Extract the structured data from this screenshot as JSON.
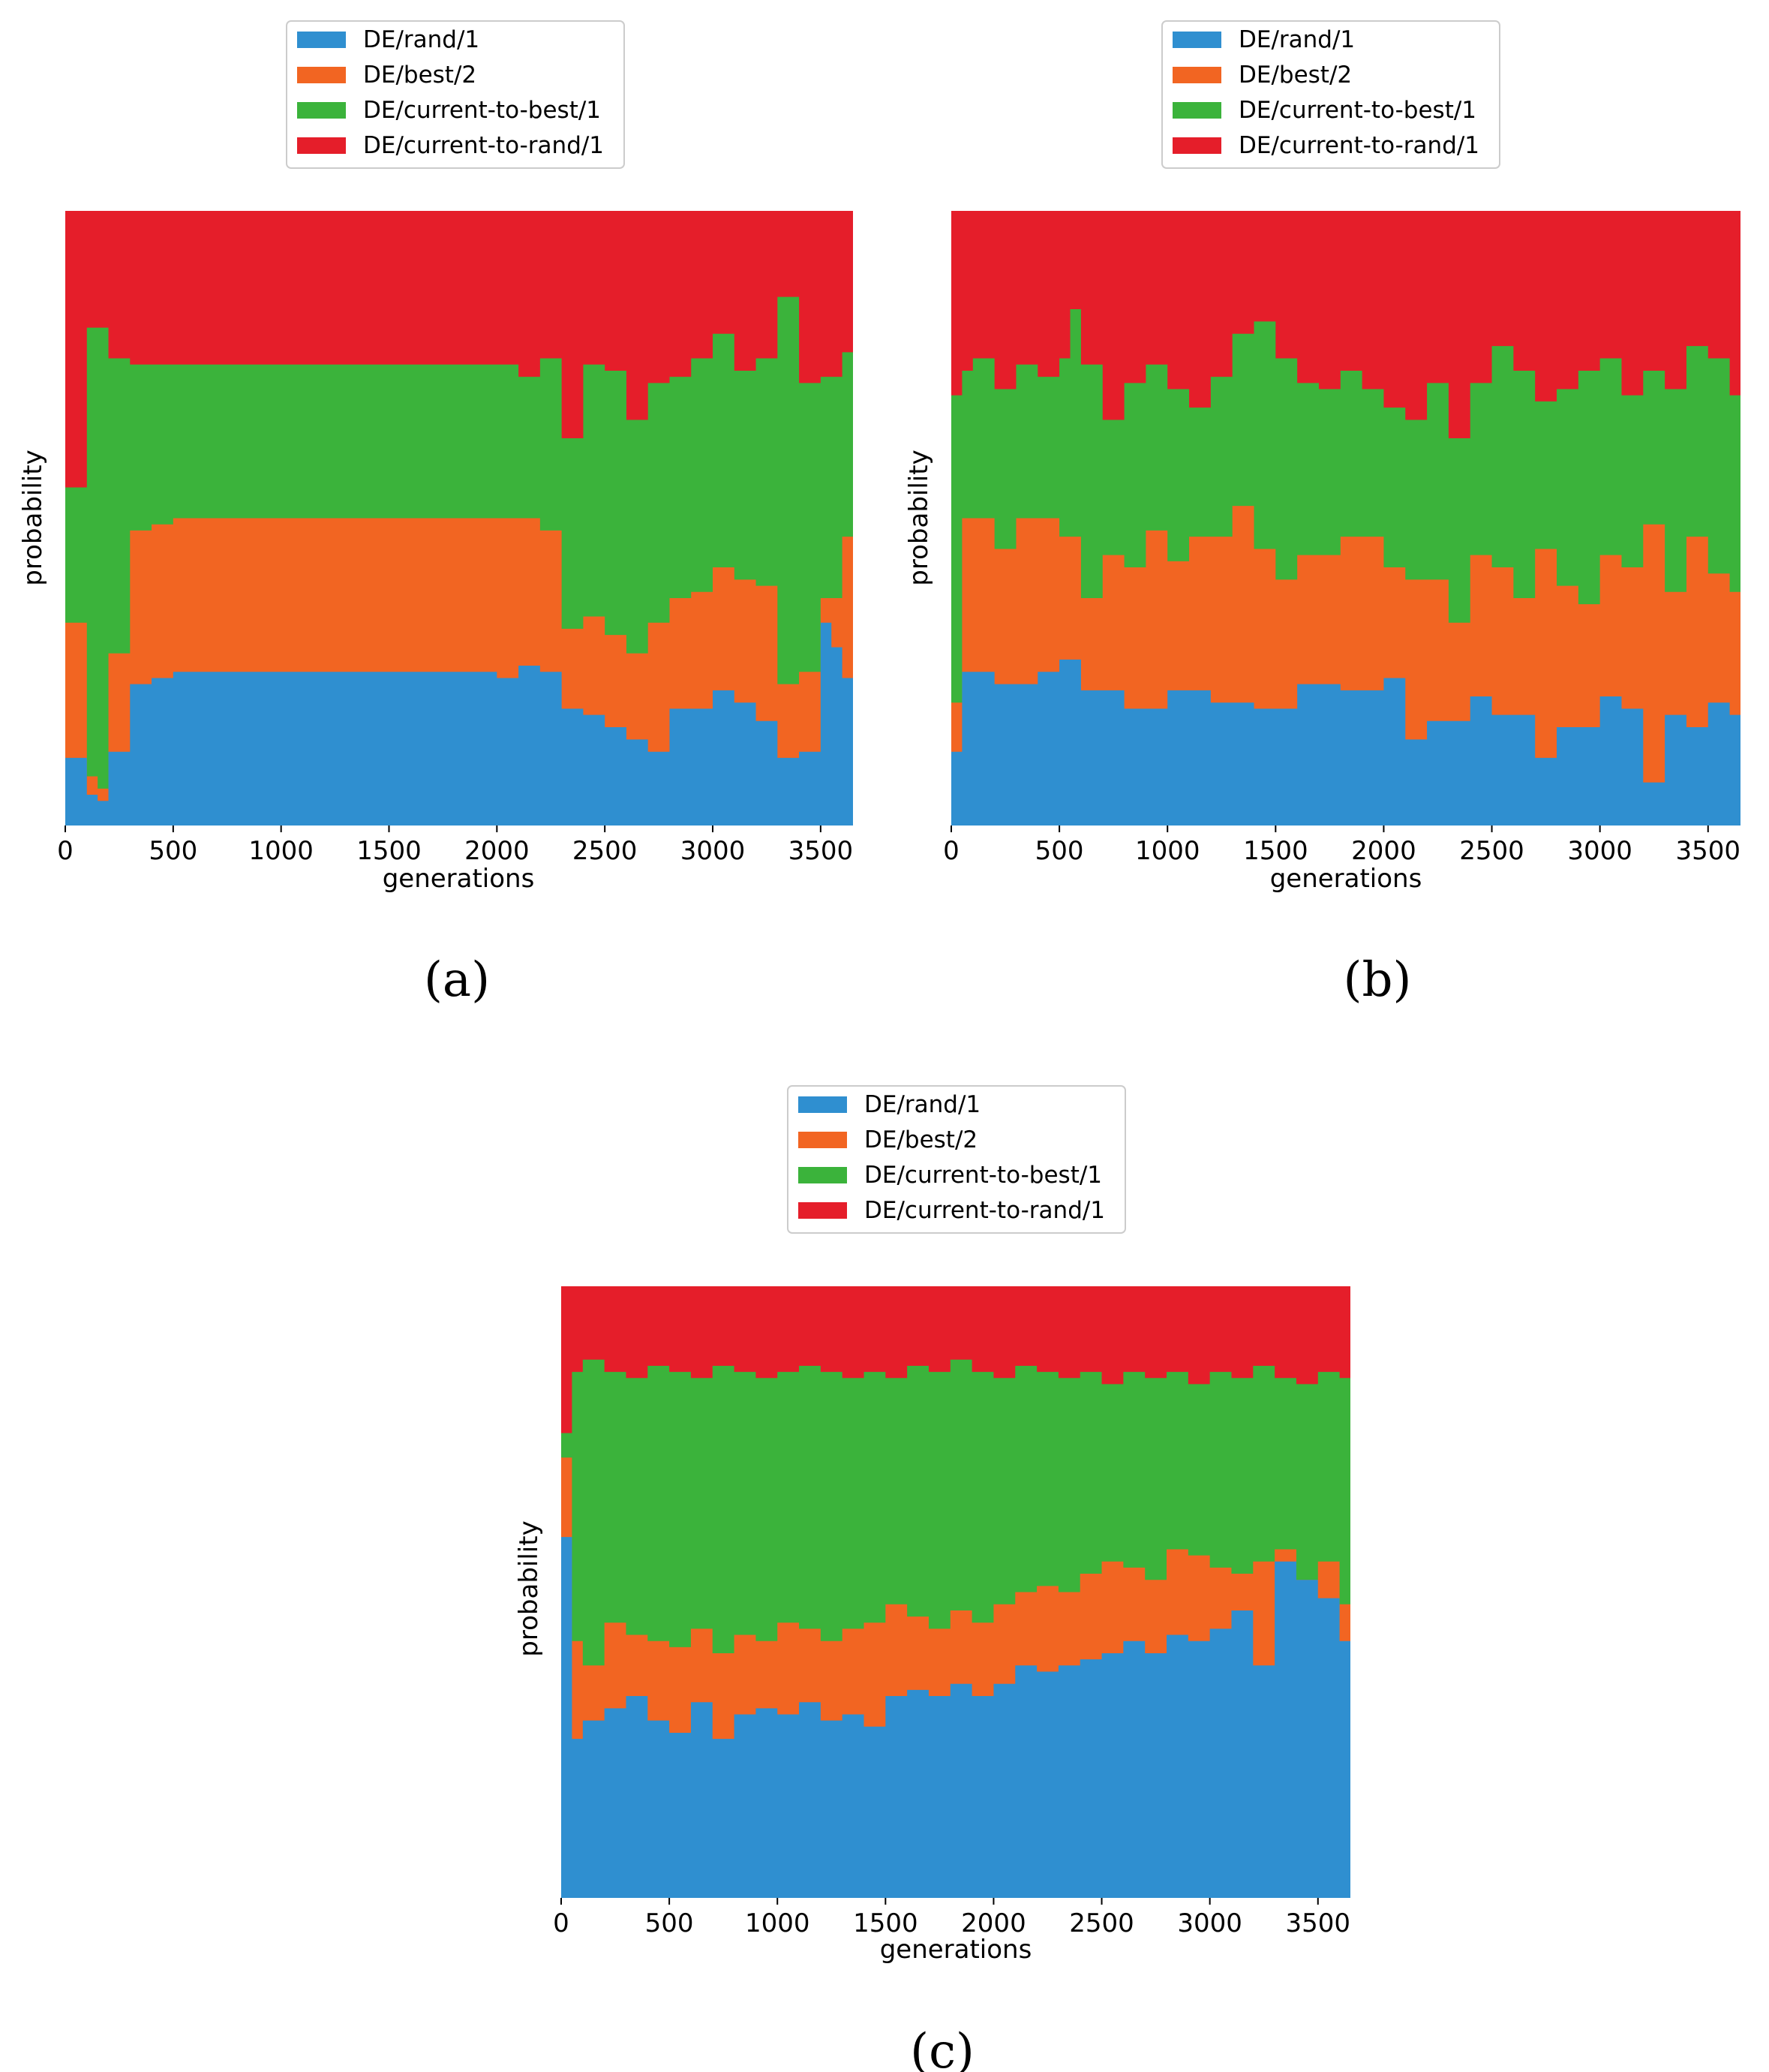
{
  "colors": {
    "DE/rand/1": "#2f8fd0",
    "DE/best/2": "#f26522",
    "DE/current-to-best/1": "#3bb33b",
    "DE/current-to-rand/1": "#e51e2a"
  },
  "chart_data": [
    {
      "panel": "(a)",
      "type": "area",
      "stacked": true,
      "step": true,
      "xlabel": "generations",
      "ylabel": "probability",
      "xlim": [
        0,
        3650
      ],
      "ylim": [
        0,
        1
      ],
      "xticks": [
        0,
        500,
        1000,
        1500,
        2000,
        2500,
        3000,
        3500
      ],
      "legend": [
        "DE/rand/1",
        "DE/best/2",
        "DE/current-to-best/1",
        "DE/current-to-rand/1"
      ],
      "legend_position": "top-center",
      "bin_width": 50,
      "cumulative_boundaries": {
        "DE/rand/1": [
          [
            0,
            0.11
          ],
          [
            100,
            0.05
          ],
          [
            150,
            0.04
          ],
          [
            200,
            0.12
          ],
          [
            300,
            0.23
          ],
          [
            400,
            0.24
          ],
          [
            500,
            0.25
          ],
          [
            2000,
            0.24
          ],
          [
            2100,
            0.26
          ],
          [
            2200,
            0.25
          ],
          [
            2300,
            0.19
          ],
          [
            2400,
            0.18
          ],
          [
            2500,
            0.16
          ],
          [
            2600,
            0.14
          ],
          [
            2700,
            0.12
          ],
          [
            2800,
            0.19
          ],
          [
            3000,
            0.22
          ],
          [
            3100,
            0.2
          ],
          [
            3200,
            0.17
          ],
          [
            3300,
            0.11
          ],
          [
            3400,
            0.12
          ],
          [
            3500,
            0.33
          ],
          [
            3550,
            0.29
          ],
          [
            3600,
            0.24
          ]
        ],
        "DE/best/2": [
          [
            0,
            0.33
          ],
          [
            100,
            0.08
          ],
          [
            150,
            0.06
          ],
          [
            200,
            0.28
          ],
          [
            300,
            0.48
          ],
          [
            400,
            0.49
          ],
          [
            500,
            0.5
          ],
          [
            2200,
            0.48
          ],
          [
            2300,
            0.32
          ],
          [
            2400,
            0.34
          ],
          [
            2500,
            0.31
          ],
          [
            2600,
            0.28
          ],
          [
            2700,
            0.33
          ],
          [
            2800,
            0.37
          ],
          [
            2900,
            0.38
          ],
          [
            3000,
            0.42
          ],
          [
            3100,
            0.4
          ],
          [
            3200,
            0.39
          ],
          [
            3300,
            0.23
          ],
          [
            3400,
            0.25
          ],
          [
            3500,
            0.37
          ],
          [
            3600,
            0.47
          ]
        ],
        "DE/current-to-best/1": [
          [
            0,
            0.55
          ],
          [
            100,
            0.81
          ],
          [
            200,
            0.76
          ],
          [
            300,
            0.75
          ],
          [
            500,
            0.75
          ],
          [
            2100,
            0.73
          ],
          [
            2200,
            0.76
          ],
          [
            2300,
            0.63
          ],
          [
            2400,
            0.75
          ],
          [
            2500,
            0.74
          ],
          [
            2600,
            0.66
          ],
          [
            2700,
            0.72
          ],
          [
            2800,
            0.73
          ],
          [
            2900,
            0.76
          ],
          [
            3000,
            0.8
          ],
          [
            3100,
            0.74
          ],
          [
            3200,
            0.76
          ],
          [
            3300,
            0.86
          ],
          [
            3400,
            0.72
          ],
          [
            3500,
            0.73
          ],
          [
            3600,
            0.77
          ]
        ]
      }
    },
    {
      "panel": "(b)",
      "type": "area",
      "stacked": true,
      "step": true,
      "xlabel": "generations",
      "ylabel": "probability",
      "xlim": [
        0,
        3650
      ],
      "ylim": [
        0,
        1
      ],
      "xticks": [
        0,
        500,
        1000,
        1500,
        2000,
        2500,
        3000,
        3500
      ],
      "legend": [
        "DE/rand/1",
        "DE/best/2",
        "DE/current-to-best/1",
        "DE/current-to-rand/1"
      ],
      "legend_position": "top-center",
      "bin_width": 50,
      "cumulative_boundaries": {
        "DE/rand/1": [
          [
            0,
            0.12
          ],
          [
            50,
            0.25
          ],
          [
            200,
            0.23
          ],
          [
            400,
            0.25
          ],
          [
            500,
            0.27
          ],
          [
            600,
            0.22
          ],
          [
            800,
            0.19
          ],
          [
            1000,
            0.22
          ],
          [
            1200,
            0.2
          ],
          [
            1400,
            0.19
          ],
          [
            1600,
            0.23
          ],
          [
            1800,
            0.22
          ],
          [
            2000,
            0.24
          ],
          [
            2100,
            0.14
          ],
          [
            2200,
            0.17
          ],
          [
            2400,
            0.21
          ],
          [
            2500,
            0.18
          ],
          [
            2700,
            0.11
          ],
          [
            2800,
            0.16
          ],
          [
            3000,
            0.21
          ],
          [
            3100,
            0.19
          ],
          [
            3200,
            0.07
          ],
          [
            3300,
            0.18
          ],
          [
            3400,
            0.16
          ],
          [
            3500,
            0.2
          ],
          [
            3600,
            0.18
          ]
        ],
        "DE/best/2": [
          [
            0,
            0.2
          ],
          [
            50,
            0.5
          ],
          [
            200,
            0.45
          ],
          [
            300,
            0.5
          ],
          [
            500,
            0.47
          ],
          [
            600,
            0.37
          ],
          [
            700,
            0.44
          ],
          [
            800,
            0.42
          ],
          [
            900,
            0.48
          ],
          [
            1000,
            0.43
          ],
          [
            1100,
            0.47
          ],
          [
            1300,
            0.52
          ],
          [
            1400,
            0.45
          ],
          [
            1500,
            0.4
          ],
          [
            1600,
            0.44
          ],
          [
            1800,
            0.47
          ],
          [
            2000,
            0.42
          ],
          [
            2100,
            0.4
          ],
          [
            2300,
            0.33
          ],
          [
            2400,
            0.44
          ],
          [
            2500,
            0.42
          ],
          [
            2600,
            0.37
          ],
          [
            2700,
            0.45
          ],
          [
            2800,
            0.39
          ],
          [
            2900,
            0.36
          ],
          [
            3000,
            0.44
          ],
          [
            3100,
            0.42
          ],
          [
            3200,
            0.49
          ],
          [
            3300,
            0.38
          ],
          [
            3400,
            0.47
          ],
          [
            3500,
            0.41
          ],
          [
            3600,
            0.38
          ]
        ],
        "DE/current-to-best/1": [
          [
            0,
            0.7
          ],
          [
            50,
            0.74
          ],
          [
            100,
            0.76
          ],
          [
            200,
            0.71
          ],
          [
            300,
            0.75
          ],
          [
            400,
            0.73
          ],
          [
            500,
            0.76
          ],
          [
            550,
            0.84
          ],
          [
            600,
            0.75
          ],
          [
            700,
            0.66
          ],
          [
            800,
            0.72
          ],
          [
            900,
            0.75
          ],
          [
            1000,
            0.71
          ],
          [
            1100,
            0.68
          ],
          [
            1200,
            0.73
          ],
          [
            1300,
            0.8
          ],
          [
            1400,
            0.82
          ],
          [
            1500,
            0.76
          ],
          [
            1600,
            0.72
          ],
          [
            1700,
            0.71
          ],
          [
            1800,
            0.74
          ],
          [
            1900,
            0.71
          ],
          [
            2000,
            0.68
          ],
          [
            2100,
            0.66
          ],
          [
            2200,
            0.72
          ],
          [
            2300,
            0.63
          ],
          [
            2400,
            0.72
          ],
          [
            2500,
            0.78
          ],
          [
            2600,
            0.74
          ],
          [
            2700,
            0.69
          ],
          [
            2800,
            0.71
          ],
          [
            2900,
            0.74
          ],
          [
            3000,
            0.76
          ],
          [
            3100,
            0.7
          ],
          [
            3200,
            0.74
          ],
          [
            3300,
            0.71
          ],
          [
            3400,
            0.78
          ],
          [
            3500,
            0.76
          ],
          [
            3600,
            0.7
          ]
        ]
      }
    },
    {
      "panel": "(c)",
      "type": "area",
      "stacked": true,
      "step": true,
      "xlabel": "generations",
      "ylabel": "probability",
      "xlim": [
        0,
        3650
      ],
      "ylim": [
        0,
        1
      ],
      "xticks": [
        0,
        500,
        1000,
        1500,
        2000,
        2500,
        3000,
        3500
      ],
      "legend": [
        "DE/rand/1",
        "DE/best/2",
        "DE/current-to-best/1",
        "DE/current-to-rand/1"
      ],
      "legend_position": "top-center",
      "bin_width": 50,
      "cumulative_boundaries": {
        "DE/rand/1": [
          [
            0,
            0.59
          ],
          [
            50,
            0.26
          ],
          [
            100,
            0.29
          ],
          [
            200,
            0.31
          ],
          [
            300,
            0.33
          ],
          [
            400,
            0.29
          ],
          [
            500,
            0.27
          ],
          [
            600,
            0.32
          ],
          [
            700,
            0.26
          ],
          [
            800,
            0.3
          ],
          [
            900,
            0.31
          ],
          [
            1000,
            0.3
          ],
          [
            1100,
            0.32
          ],
          [
            1200,
            0.29
          ],
          [
            1300,
            0.3
          ],
          [
            1400,
            0.28
          ],
          [
            1500,
            0.33
          ],
          [
            1600,
            0.34
          ],
          [
            1700,
            0.33
          ],
          [
            1800,
            0.35
          ],
          [
            1900,
            0.33
          ],
          [
            2000,
            0.35
          ],
          [
            2100,
            0.38
          ],
          [
            2200,
            0.37
          ],
          [
            2300,
            0.38
          ],
          [
            2400,
            0.39
          ],
          [
            2500,
            0.4
          ],
          [
            2600,
            0.42
          ],
          [
            2700,
            0.4
          ],
          [
            2800,
            0.43
          ],
          [
            2900,
            0.42
          ],
          [
            3000,
            0.44
          ],
          [
            3100,
            0.47
          ],
          [
            3200,
            0.38
          ],
          [
            3300,
            0.55
          ],
          [
            3400,
            0.52
          ],
          [
            3500,
            0.49
          ],
          [
            3600,
            0.42
          ]
        ],
        "DE/best/2": [
          [
            0,
            0.72
          ],
          [
            50,
            0.42
          ],
          [
            100,
            0.38
          ],
          [
            200,
            0.45
          ],
          [
            300,
            0.43
          ],
          [
            400,
            0.42
          ],
          [
            500,
            0.41
          ],
          [
            600,
            0.44
          ],
          [
            700,
            0.4
          ],
          [
            800,
            0.43
          ],
          [
            900,
            0.42
          ],
          [
            1000,
            0.45
          ],
          [
            1100,
            0.44
          ],
          [
            1200,
            0.42
          ],
          [
            1300,
            0.44
          ],
          [
            1400,
            0.45
          ],
          [
            1500,
            0.48
          ],
          [
            1600,
            0.46
          ],
          [
            1700,
            0.44
          ],
          [
            1800,
            0.47
          ],
          [
            1900,
            0.45
          ],
          [
            2000,
            0.48
          ],
          [
            2100,
            0.5
          ],
          [
            2200,
            0.51
          ],
          [
            2300,
            0.5
          ],
          [
            2400,
            0.53
          ],
          [
            2500,
            0.55
          ],
          [
            2600,
            0.54
          ],
          [
            2700,
            0.52
          ],
          [
            2800,
            0.57
          ],
          [
            2900,
            0.56
          ],
          [
            3000,
            0.54
          ],
          [
            3100,
            0.53
          ],
          [
            3200,
            0.55
          ],
          [
            3300,
            0.57
          ],
          [
            3400,
            0.52
          ],
          [
            3500,
            0.55
          ],
          [
            3600,
            0.48
          ]
        ],
        "DE/current-to-best/1": [
          [
            0,
            0.76
          ],
          [
            50,
            0.86
          ],
          [
            100,
            0.88
          ],
          [
            200,
            0.86
          ],
          [
            300,
            0.85
          ],
          [
            400,
            0.87
          ],
          [
            500,
            0.86
          ],
          [
            600,
            0.85
          ],
          [
            700,
            0.87
          ],
          [
            800,
            0.86
          ],
          [
            900,
            0.85
          ],
          [
            1000,
            0.86
          ],
          [
            1100,
            0.87
          ],
          [
            1200,
            0.86
          ],
          [
            1300,
            0.85
          ],
          [
            1400,
            0.86
          ],
          [
            1500,
            0.85
          ],
          [
            1600,
            0.87
          ],
          [
            1700,
            0.86
          ],
          [
            1800,
            0.88
          ],
          [
            1900,
            0.86
          ],
          [
            2000,
            0.85
          ],
          [
            2100,
            0.87
          ],
          [
            2200,
            0.86
          ],
          [
            2300,
            0.85
          ],
          [
            2400,
            0.86
          ],
          [
            2500,
            0.84
          ],
          [
            2600,
            0.86
          ],
          [
            2700,
            0.85
          ],
          [
            2800,
            0.86
          ],
          [
            2900,
            0.84
          ],
          [
            3000,
            0.86
          ],
          [
            3100,
            0.85
          ],
          [
            3200,
            0.87
          ],
          [
            3300,
            0.85
          ],
          [
            3400,
            0.84
          ],
          [
            3500,
            0.86
          ],
          [
            3600,
            0.85
          ]
        ]
      }
    }
  ]
}
